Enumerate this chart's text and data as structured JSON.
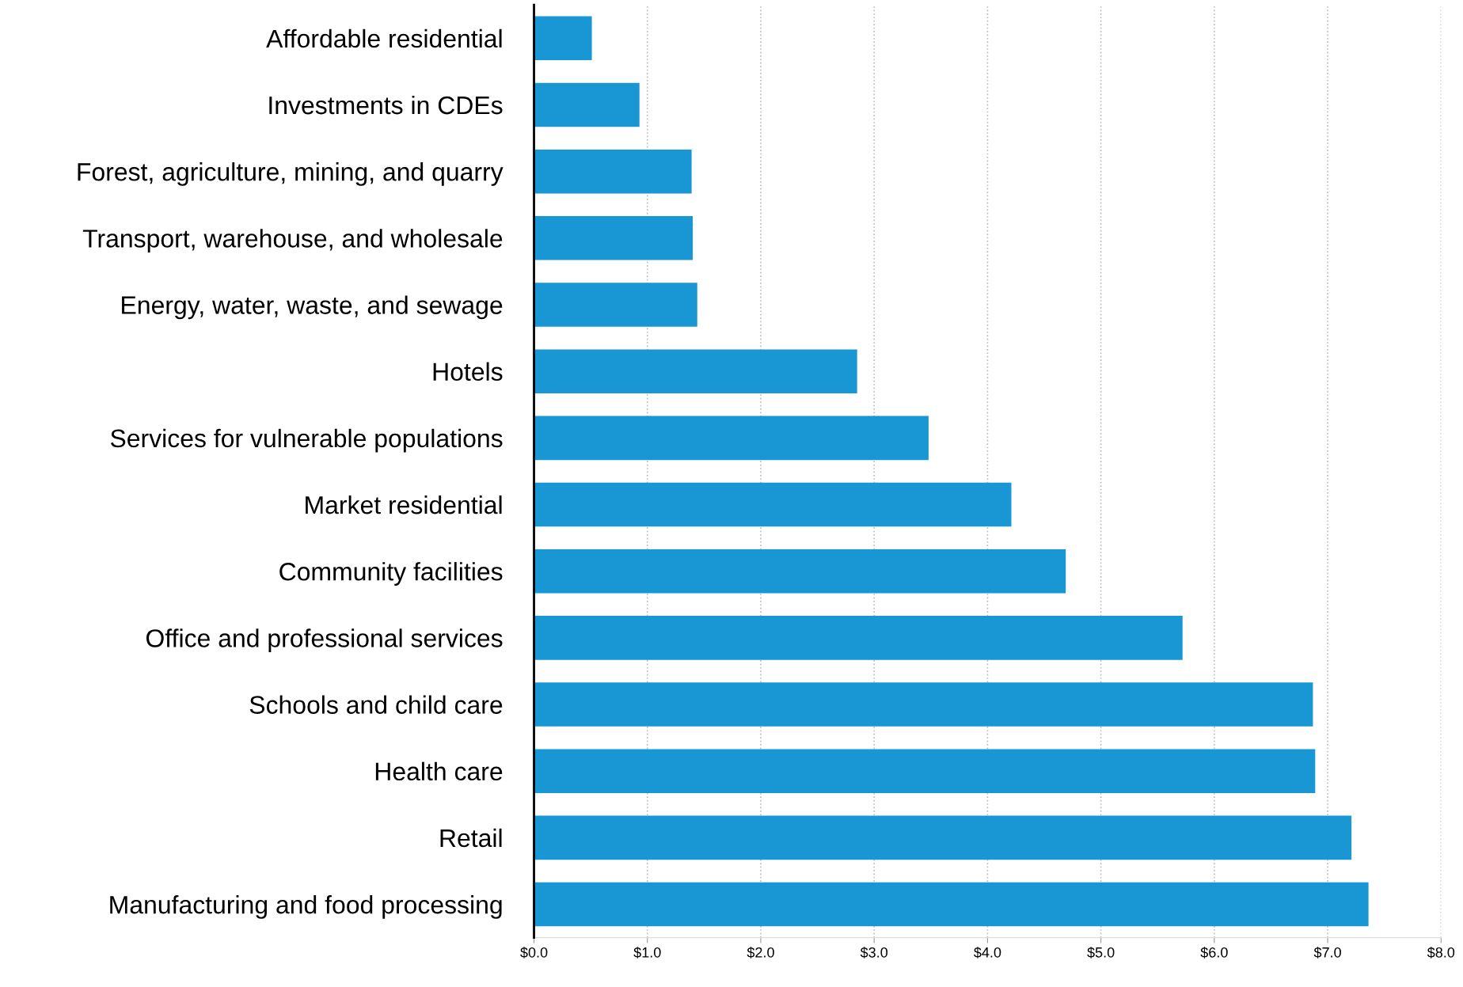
{
  "chart_data": {
    "type": "bar",
    "orientation": "horizontal",
    "categories": [
      "Affordable residential",
      "Investments in CDEs",
      "Forest, agriculture, mining, and quarry",
      "Transport, warehouse, and wholesale",
      "Energy, water, waste, and sewage",
      "Hotels",
      "Services for vulnerable populations",
      "Market residential",
      "Community facilities",
      "Office and professional services",
      "Schools and child care",
      "Health care",
      "Retail",
      "Manufacturing and food processing"
    ],
    "values": [
      0.51,
      0.93,
      1.39,
      1.4,
      1.44,
      2.85,
      3.48,
      4.21,
      4.69,
      5.72,
      6.87,
      6.89,
      7.21,
      7.36
    ],
    "color": "#1996d4",
    "xlim": [
      0,
      8
    ],
    "xticks": [
      {
        "value": 0,
        "label": "$0.0"
      },
      {
        "value": 1,
        "label": "$1.0"
      },
      {
        "value": 2,
        "label": "$2.0"
      },
      {
        "value": 3,
        "label": "$3.0"
      },
      {
        "value": 4,
        "label": "$4.0"
      },
      {
        "value": 5,
        "label": "$5.0"
      },
      {
        "value": 6,
        "label": "$6.0"
      },
      {
        "value": 7,
        "label": "$7.0"
      },
      {
        "value": 8,
        "label": "$8.0"
      }
    ],
    "grid": "x",
    "legend": false
  }
}
